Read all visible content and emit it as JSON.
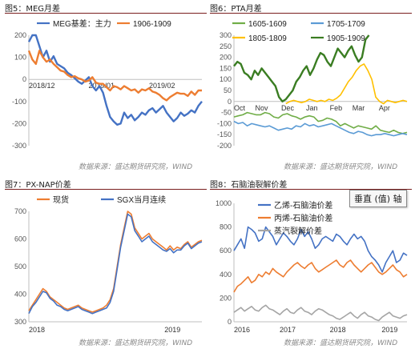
{
  "tooltip": "垂直 (值) 轴",
  "chart_data": [
    {
      "title": "图5：MEG月差",
      "type": "line",
      "source": "数据来源：盛达期货研究院，WIND",
      "ylim": [
        -300,
        200
      ],
      "yticks": [
        -300,
        -200,
        -100,
        0,
        100,
        200
      ],
      "xlabels": [
        {
          "label": "2018/12",
          "x": 0.0
        },
        {
          "label": "2019/01",
          "x": 0.42
        },
        {
          "label": "2019/02",
          "x": 0.77
        }
      ],
      "legend_position": "top",
      "series": [
        {
          "name": "MEG基差：主力",
          "color": "#4472c4",
          "y": [
            170,
            200,
            200,
            150,
            100,
            130,
            80,
            105,
            70,
            60,
            50,
            30,
            20,
            5,
            -10,
            -20,
            -5,
            10,
            -30,
            -50,
            -30,
            -60,
            -120,
            -170,
            -190,
            -205,
            -200,
            -150,
            -175,
            -160,
            -185,
            -170,
            -150,
            -160,
            -140,
            -130,
            -150,
            -135,
            -120,
            -150,
            -170,
            -190,
            -175,
            -150,
            -165,
            -155,
            -140,
            -150,
            -120,
            -100
          ]
        },
        {
          "name": "1906-1909",
          "color": "#ed7d31",
          "y": [
            130,
            90,
            70,
            130,
            100,
            80,
            90,
            70,
            55,
            40,
            35,
            20,
            10,
            15,
            5,
            0,
            -10,
            -5,
            10,
            -15,
            -20,
            -20,
            -35,
            -50,
            -30,
            -35,
            -45,
            -30,
            -40,
            -50,
            -45,
            -60,
            -45,
            -50,
            -40,
            -55,
            -60,
            -70,
            -85,
            -95,
            -80,
            -70,
            -60,
            -65,
            -65,
            -75,
            -55,
            -70,
            -50,
            -50
          ]
        }
      ]
    },
    {
      "title": "图6：PTA月差",
      "type": "line",
      "source": "数据来源：盛达期货研究院，WIND",
      "ylim": [
        -200,
        300
      ],
      "yticks": [
        -200,
        -150,
        -100,
        -50,
        0,
        50,
        100,
        150,
        200,
        250,
        300
      ],
      "xlabels": [
        {
          "label": "Oct",
          "x": 0.0
        },
        {
          "label": "Nov",
          "x": 0.16
        },
        {
          "label": "Dec",
          "x": 0.31
        },
        {
          "label": "Jan",
          "x": 0.45
        },
        {
          "label": "Feb",
          "x": 0.59
        },
        {
          "label": "Mar",
          "x": 0.72
        },
        {
          "label": "Apr",
          "x": 0.87
        }
      ],
      "legend_position": "top",
      "series": [
        {
          "name": "1605-1609",
          "color": "#70ad47",
          "x_range": [
            0.0,
            1.0
          ],
          "y": [
            -70,
            -65,
            -60,
            -50,
            -55,
            -60,
            -60,
            -50,
            -55,
            -70,
            -75,
            -60,
            -55,
            -65,
            -70,
            -80,
            -70,
            -65,
            -70,
            -90,
            -85,
            -75,
            -80,
            -90,
            -110,
            -100,
            -110,
            -120,
            -110,
            -115,
            -120,
            -125,
            -110,
            -130,
            -135,
            -140,
            -130,
            -140,
            -145,
            -140
          ]
        },
        {
          "name": "1705-1709",
          "color": "#5b9bd5",
          "x_range": [
            0.0,
            1.0
          ],
          "y": [
            -90,
            -100,
            -95,
            -110,
            -100,
            -105,
            -110,
            -115,
            -110,
            -120,
            -130,
            -125,
            -120,
            -125,
            -110,
            -115,
            -100,
            -110,
            -105,
            -115,
            -110,
            -105,
            -100,
            -110,
            -120,
            -130,
            -140,
            -145,
            -135,
            -140,
            -150,
            -155,
            -150,
            -150,
            -145,
            -150,
            -155,
            -150,
            -145,
            -150
          ]
        },
        {
          "name": "1805-1809",
          "color": "#ffc000",
          "x_range": [
            0.3,
            1.0
          ],
          "y": [
            -10,
            0,
            5,
            0,
            -5,
            0,
            10,
            5,
            0,
            5,
            0,
            10,
            5,
            15,
            30,
            60,
            90,
            110,
            140,
            160,
            170,
            140,
            100,
            20,
            0,
            -10,
            5,
            0,
            -5,
            0,
            5,
            0
          ]
        },
        {
          "name": "1905-1909",
          "color": "#3a7d22",
          "x_range": [
            0.0,
            0.78
          ],
          "y": [
            160,
            180,
            170,
            130,
            120,
            100,
            140,
            120,
            150,
            130,
            110,
            90,
            70,
            20,
            0,
            10,
            30,
            50,
            90,
            110,
            140,
            160,
            120,
            150,
            190,
            220,
            210,
            180,
            160,
            200,
            240,
            220,
            200,
            230,
            250,
            210,
            180,
            200,
            280,
            300
          ]
        }
      ]
    },
    {
      "title": "图7：PX-NAP价差",
      "type": "line",
      "source": "数据来源：盛达期货研究院，WIND",
      "ylim": [
        300,
        700
      ],
      "yticks": [
        300,
        400,
        500,
        600,
        700
      ],
      "xlabels": [
        {
          "label": "2018",
          "x": 0.0
        },
        {
          "label": "2019",
          "x": 0.83
        }
      ],
      "legend_position": "top",
      "series": [
        {
          "name": "现货",
          "color": "#ed7d31",
          "y": [
            340,
            360,
            380,
            400,
            420,
            410,
            390,
            380,
            370,
            360,
            350,
            345,
            350,
            355,
            360,
            350,
            345,
            340,
            335,
            340,
            345,
            350,
            360,
            380,
            420,
            500,
            580,
            640,
            700,
            690,
            640,
            620,
            600,
            610,
            620,
            600,
            590,
            580,
            570,
            560,
            575,
            560,
            570,
            565,
            580,
            590,
            570,
            580,
            590,
            595
          ]
        },
        {
          "name": "SGX当月连续",
          "color": "#4472c4",
          "y": [
            330,
            355,
            370,
            390,
            410,
            405,
            385,
            375,
            360,
            355,
            345,
            340,
            345,
            350,
            355,
            345,
            340,
            335,
            330,
            335,
            340,
            345,
            350,
            370,
            410,
            490,
            570,
            630,
            690,
            680,
            630,
            610,
            590,
            600,
            610,
            590,
            580,
            570,
            560,
            555,
            565,
            550,
            560,
            560,
            575,
            585,
            565,
            575,
            585,
            590
          ]
        }
      ]
    },
    {
      "title": "图8：石脑油裂解价差",
      "type": "line",
      "source": "数据来源：盛达期货研究院，WIND",
      "ylim": [
        0,
        1000
      ],
      "yticks": [
        0,
        200,
        400,
        600,
        800,
        1000
      ],
      "xlabels": [
        {
          "label": "2016",
          "x": 0.0
        },
        {
          "label": "2017",
          "x": 0.31
        },
        {
          "label": "2018",
          "x": 0.6
        },
        {
          "label": "2019",
          "x": 0.9
        }
      ],
      "legend_position": "top-left",
      "series": [
        {
          "name": "乙烯-石脑油价差",
          "color": "#4472c4",
          "y": [
            600,
            650,
            700,
            620,
            800,
            780,
            750,
            680,
            700,
            800,
            760,
            720,
            650,
            700,
            750,
            720,
            680,
            650,
            700,
            780,
            720,
            760,
            700,
            620,
            650,
            700,
            720,
            700,
            680,
            740,
            720,
            680,
            650,
            700,
            740,
            700,
            720,
            680,
            600,
            550,
            520,
            480,
            420,
            500,
            550,
            600,
            500,
            520,
            580,
            560
          ]
        },
        {
          "name": "丙烯-石脑油价差",
          "color": "#ed7d31",
          "y": [
            250,
            300,
            320,
            350,
            380,
            330,
            350,
            400,
            380,
            420,
            400,
            450,
            420,
            400,
            380,
            420,
            450,
            480,
            500,
            470,
            450,
            480,
            500,
            450,
            420,
            440,
            460,
            480,
            500,
            520,
            480,
            460,
            500,
            520,
            480,
            450,
            420,
            450,
            480,
            500,
            460,
            420,
            400,
            420,
            450,
            480,
            440,
            420,
            380,
            400
          ]
        },
        {
          "name": "蒸汽裂解价差",
          "color": "#a5a5a5",
          "y": [
            80,
            100,
            120,
            90,
            110,
            130,
            100,
            90,
            120,
            140,
            110,
            100,
            80,
            60,
            90,
            110,
            80,
            70,
            100,
            120,
            90,
            80,
            60,
            90,
            110,
            100,
            80,
            60,
            50,
            30,
            20,
            40,
            60,
            80,
            50,
            30,
            60,
            80,
            50,
            40,
            20,
            10,
            40,
            60,
            80,
            50,
            40,
            30,
            50,
            60
          ]
        }
      ]
    }
  ]
}
